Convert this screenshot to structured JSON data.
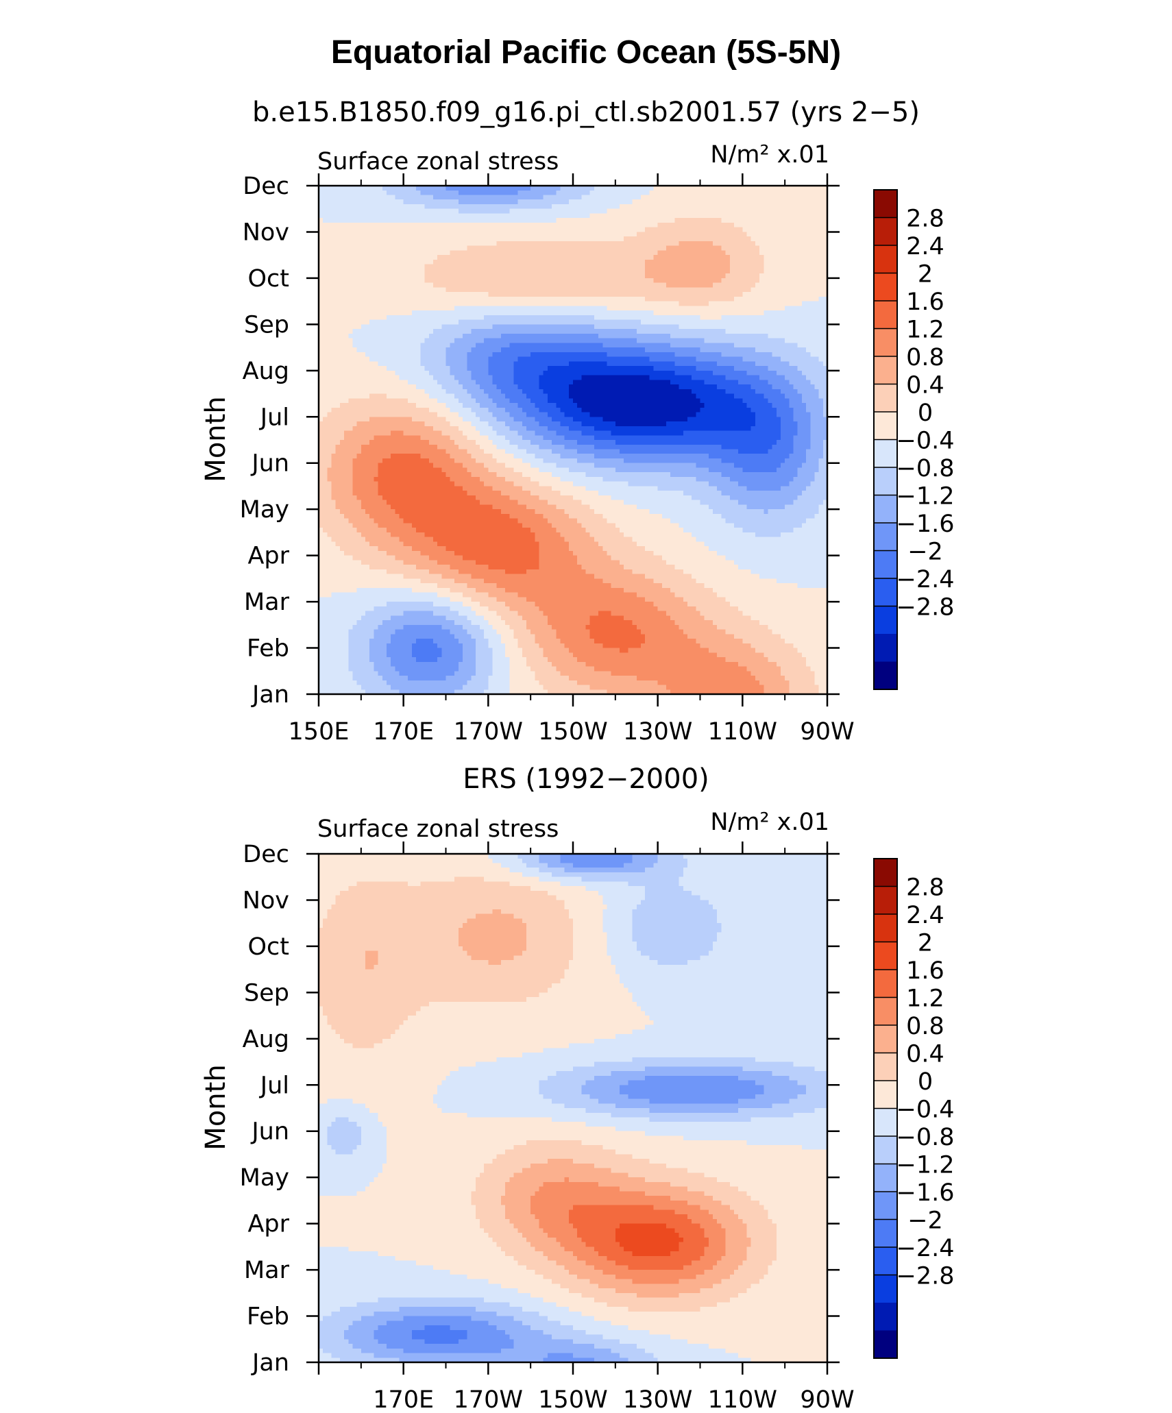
{
  "title": "Equatorial Pacific Ocean (5S-5N)",
  "colors": [
    "#00007f",
    "#001bb3",
    "#0a3ee0",
    "#2a5ef0",
    "#4d7bf5",
    "#6f96f8",
    "#93b2fa",
    "#b9cffb",
    "#d8e6fb",
    "#fde8d8",
    "#fcd0b8",
    "#fbb08e",
    "#f88e65",
    "#f36a3e",
    "#ec4a1f",
    "#d8330f",
    "#b81e08",
    "#8a0a02"
  ],
  "chart_data": [
    {
      "type": "heatmap",
      "subtitle": "b.e15.B1850.f09_g16.pi_ctl.sb2001.57 (yrs 2−5)",
      "left_label": "Surface zonal stress",
      "right_label": "N/m² x.01",
      "ylabel": "Month",
      "xlabel": "",
      "x_tick_labels": [
        "150E",
        "170E",
        "170W",
        "150W",
        "130W",
        "110W",
        "90W"
      ],
      "y_tick_labels": [
        "Jan",
        "Feb",
        "Mar",
        "Apr",
        "May",
        "Jun",
        "Jul",
        "Aug",
        "Sep",
        "Oct",
        "Nov",
        "Dec"
      ],
      "xlim": [
        150,
        270
      ],
      "ylim": [
        1,
        12
      ],
      "levels": [
        -2.8,
        -2.4,
        -2,
        -1.6,
        -1.2,
        -0.8,
        -0.4,
        0,
        0.4,
        0.8,
        1.2,
        1.6,
        2,
        2.4,
        2.8
      ],
      "colorbar_labels": [
        "2.8",
        "2.4",
        "2",
        "1.6",
        "1.2",
        "0.8",
        "0.4",
        "0",
        "−0.4",
        "−0.8",
        "−1.2",
        "−1.6",
        "−2",
        "−2.4",
        "−2.8"
      ],
      "grid": false,
      "features": [
        {
          "lon": 170,
          "month": 5.8,
          "amp": 1.7,
          "sx": 20,
          "sy": 1.6
        },
        {
          "lon": 193,
          "month": 4.2,
          "amp": 1.7,
          "sx": 22,
          "sy": 1.4
        },
        {
          "lon": 220,
          "month": 2.3,
          "amp": 1.6,
          "sx": 22,
          "sy": 1.4
        },
        {
          "lon": 248,
          "month": 0.8,
          "amp": 1.4,
          "sx": 18,
          "sy": 1.4
        },
        {
          "lon": 226,
          "month": 7.3,
          "amp": -3.2,
          "sx": 30,
          "sy": 1.3
        },
        {
          "lon": 196,
          "month": 8.3,
          "amp": -1.3,
          "sx": 22,
          "sy": 1.1
        },
        {
          "lon": 256,
          "month": 6.2,
          "amp": -1.4,
          "sx": 14,
          "sy": 1.6
        },
        {
          "lon": 176,
          "month": 2.0,
          "amp": -1.8,
          "sx": 16,
          "sy": 1.2
        },
        {
          "lon": 200,
          "month": 10.0,
          "amp": 0.9,
          "sx": 30,
          "sy": 0.9
        },
        {
          "lon": 240,
          "month": 10.3,
          "amp": 0.9,
          "sx": 16,
          "sy": 1.1
        },
        {
          "lon": 190,
          "month": 12.1,
          "amp": -1.6,
          "sx": 22,
          "sy": 0.6
        }
      ]
    },
    {
      "type": "heatmap",
      "subtitle": "ERS (1992−2000)",
      "left_label": "Surface zonal stress",
      "right_label": "N/m² x.01",
      "ylabel": "Month",
      "xlabel": "",
      "x_tick_labels": [
        "170E",
        "170W",
        "150W",
        "130W",
        "110W",
        "90W"
      ],
      "y_tick_labels": [
        "Jan",
        "Feb",
        "Mar",
        "Apr",
        "May",
        "Jun",
        "Jul",
        "Aug",
        "Sep",
        "Oct",
        "Nov",
        "Dec"
      ],
      "xlim": [
        150,
        270
      ],
      "ylim": [
        1,
        12
      ],
      "levels": [
        -2.8,
        -2.4,
        -2,
        -1.6,
        -1.2,
        -0.8,
        -0.4,
        0,
        0.4,
        0.8,
        1.2,
        1.6,
        2,
        2.4,
        2.8
      ],
      "colorbar_labels": [
        "2.8",
        "2.4",
        "2",
        "1.6",
        "1.2",
        "0.8",
        "0.4",
        "0",
        "−0.4",
        "−0.8",
        "−1.2",
        "−1.6",
        "−2",
        "−2.4",
        "−2.8"
      ],
      "grid": false,
      "features": [
        {
          "lon": 230,
          "month": 3.6,
          "amp": 2.1,
          "sx": 22,
          "sy": 1.2
        },
        {
          "lon": 205,
          "month": 4.6,
          "amp": 1.1,
          "sx": 18,
          "sy": 1.2
        },
        {
          "lon": 178,
          "month": 1.6,
          "amp": -1.7,
          "sx": 25,
          "sy": 0.7
        },
        {
          "lon": 212,
          "month": 0.9,
          "amp": -1.2,
          "sx": 18,
          "sy": 0.6
        },
        {
          "lon": 238,
          "month": 6.9,
          "amp": -1.6,
          "sx": 32,
          "sy": 0.6
        },
        {
          "lon": 214,
          "month": 11.9,
          "amp": -1.6,
          "sx": 18,
          "sy": 0.45
        },
        {
          "lon": 233,
          "month": 10.4,
          "amp": -0.8,
          "sx": 14,
          "sy": 1.0
        },
        {
          "lon": 160,
          "month": 9.5,
          "amp": 0.7,
          "sx": 14,
          "sy": 2.2
        },
        {
          "lon": 192,
          "month": 10.2,
          "amp": 0.9,
          "sx": 22,
          "sy": 1.6
        },
        {
          "lon": 156,
          "month": 5.9,
          "amp": -0.7,
          "sx": 6,
          "sy": 0.6
        }
      ]
    }
  ]
}
